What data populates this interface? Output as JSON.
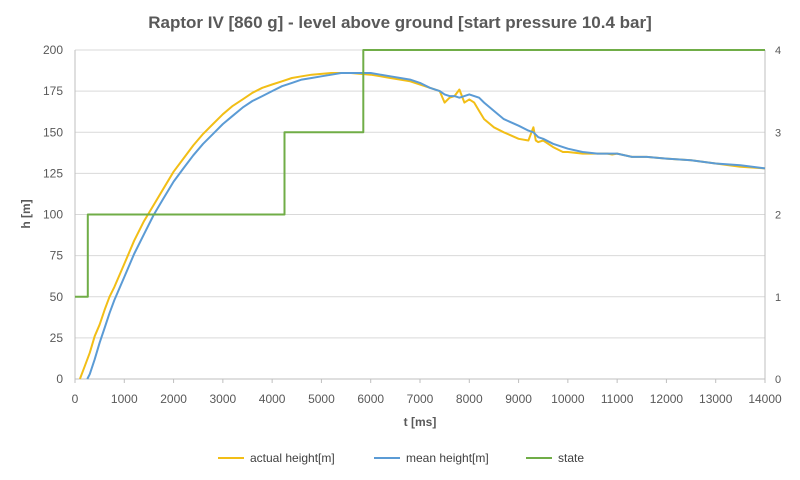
{
  "chart_data": {
    "type": "line",
    "title": "Raptor IV [860 g] - level above ground [start pressure 10.4 bar]",
    "xlabel": "t [ms]",
    "ylabel": "h [m]",
    "xlim": [
      0,
      14000
    ],
    "ylim": [
      0,
      200
    ],
    "y2lim": [
      0,
      4
    ],
    "x_ticks": [
      "0",
      "1000",
      "2000",
      "3000",
      "4000",
      "5000",
      "6000",
      "7000",
      "8000",
      "9000",
      "10000",
      "11000",
      "12000",
      "13000",
      "14000"
    ],
    "y_ticks": [
      "0",
      "25",
      "50",
      "75",
      "100",
      "125",
      "150",
      "175",
      "200"
    ],
    "y2_ticks": [
      "0",
      "1",
      "2",
      "3",
      "4"
    ],
    "grid": "horizontal",
    "legend_position": "bottom",
    "colors": {
      "actual": "#F2BE16",
      "mean": "#5B9BD5",
      "state": "#70AD47",
      "grid": "#D9D9D9",
      "axis": "#BFBFBF"
    },
    "series": [
      {
        "name": "actual height[m]",
        "axis": "left",
        "x": [
          100,
          200,
          300,
          400,
          500,
          600,
          700,
          800,
          1000,
          1200,
          1400,
          1600,
          1800,
          2000,
          2200,
          2400,
          2600,
          2800,
          3000,
          3200,
          3400,
          3600,
          3800,
          4000,
          4200,
          4400,
          4600,
          4800,
          5000,
          5200,
          5400,
          5600,
          5800,
          6000,
          6200,
          6400,
          6600,
          6800,
          7000,
          7200,
          7400,
          7500,
          7600,
          7700,
          7800,
          7900,
          8000,
          8100,
          8200,
          8300,
          8500,
          8700,
          9000,
          9200,
          9300,
          9350,
          9400,
          9500,
          9700,
          9900,
          10000,
          10300,
          10600,
          10800,
          10900,
          11000,
          11300,
          11600,
          12000,
          12500,
          13000,
          13500,
          14000
        ],
        "y": [
          0,
          8,
          16,
          26,
          33,
          42,
          50,
          56,
          70,
          84,
          96,
          106,
          116,
          126,
          134,
          142,
          149,
          155,
          161,
          166,
          170,
          174,
          177,
          179,
          181,
          183,
          184,
          185,
          185.5,
          186,
          186,
          186,
          185.5,
          185,
          184,
          183,
          182,
          181,
          179,
          177,
          175,
          168,
          171,
          172,
          176,
          168,
          170,
          168,
          163,
          158,
          153,
          150,
          146,
          145,
          153,
          145,
          144,
          145,
          141,
          138,
          138,
          137,
          137,
          137,
          136.5,
          137,
          135,
          135,
          134,
          133,
          131,
          129,
          128
        ]
      },
      {
        "name": "mean height[m]",
        "axis": "left",
        "x": [
          250,
          300,
          400,
          500,
          600,
          700,
          800,
          1000,
          1200,
          1400,
          1600,
          1800,
          2000,
          2200,
          2400,
          2600,
          2800,
          3000,
          3200,
          3400,
          3600,
          3800,
          4000,
          4200,
          4400,
          4600,
          4800,
          5000,
          5200,
          5400,
          5600,
          5800,
          6000,
          6200,
          6400,
          6600,
          6800,
          7000,
          7200,
          7400,
          7500,
          7600,
          7700,
          7800,
          7900,
          8000,
          8100,
          8200,
          8300,
          8500,
          8700,
          9000,
          9200,
          9300,
          9400,
          9500,
          9700,
          9900,
          10000,
          10300,
          10600,
          10800,
          11000,
          11300,
          11600,
          12000,
          12500,
          13000,
          13500,
          14000
        ],
        "y": [
          0,
          3,
          12,
          22,
          31,
          40,
          48,
          62,
          76,
          88,
          100,
          110,
          120,
          128,
          136,
          143,
          149,
          155,
          160,
          165,
          169,
          172,
          175,
          178,
          180,
          182,
          183,
          184,
          185,
          186,
          186,
          186,
          186,
          185,
          184,
          183,
          182,
          180,
          177,
          175,
          173,
          172,
          172,
          171,
          172,
          173,
          172,
          171,
          168,
          163,
          158,
          154,
          151,
          150,
          147,
          146,
          143,
          141,
          140,
          138,
          137,
          137,
          137,
          135,
          135,
          134,
          133,
          131,
          130,
          128
        ]
      },
      {
        "name": "state",
        "axis": "right",
        "x": [
          0,
          260,
          260,
          4250,
          4250,
          5850,
          5850,
          14000
        ],
        "y": [
          1,
          1,
          2,
          2,
          3,
          3,
          4,
          4
        ]
      }
    ]
  }
}
